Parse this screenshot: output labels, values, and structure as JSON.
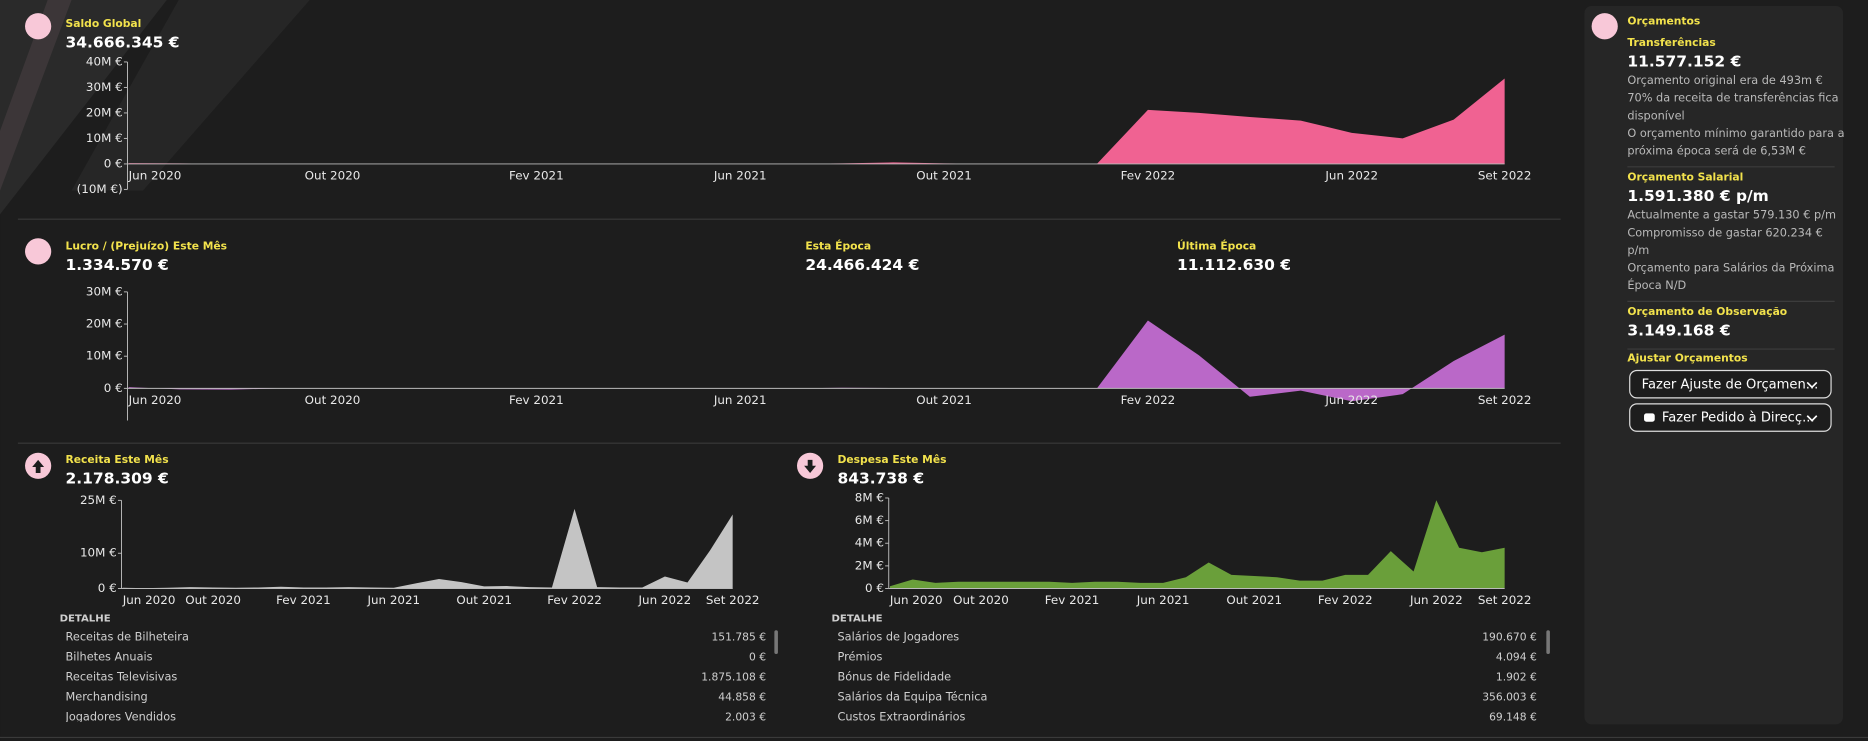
{
  "chart_data": [
    {
      "type": "area",
      "title": "Saldo Global",
      "subtitle": "34.666.345 €",
      "color": "#f06292",
      "categories": [
        "Jun 2020",
        null,
        null,
        null,
        "Out 2020",
        null,
        null,
        null,
        "Fev 2021",
        null,
        null,
        null,
        "Jun 2021",
        null,
        null,
        null,
        "Out 2021",
        null,
        null,
        null,
        "Fev 2022",
        null,
        null,
        null,
        "Jun 2022",
        null,
        null,
        "Set 2022"
      ],
      "values": [
        0.3,
        0.2,
        0,
        0,
        0,
        0,
        0,
        0,
        0,
        0,
        0,
        0,
        0,
        0,
        0.2,
        0.6,
        0.2,
        0,
        0,
        0,
        21.2,
        20,
        18.4,
        17,
        12.2,
        10,
        17.4,
        33.5
      ],
      "ylim": [
        -10,
        40
      ],
      "yticks": [
        {
          "value": -10,
          "label": "(10M €)"
        },
        {
          "value": 0,
          "label": "0 €"
        },
        {
          "value": 10,
          "label": "10M €"
        },
        {
          "value": 20,
          "label": "20M €"
        },
        {
          "value": 30,
          "label": "30M €"
        },
        {
          "value": 40,
          "label": "40M €"
        }
      ]
    },
    {
      "type": "area",
      "title": "Lucro / (Prejuízo) Este Mês",
      "subtitle": "1.334.570 €",
      "color": "#ba68c8",
      "annotations": [
        {
          "label": "Esta Época",
          "value": "24.466.424 €"
        },
        {
          "label": "Última Época",
          "value": "11.112.630 €"
        }
      ],
      "categories": [
        "Jun 2020",
        null,
        null,
        null,
        "Out 2020",
        null,
        null,
        null,
        "Fev 2021",
        null,
        null,
        null,
        "Jun 2021",
        null,
        null,
        null,
        "Out 2021",
        null,
        null,
        null,
        "Fev 2022",
        null,
        null,
        null,
        "Jun 2022",
        null,
        null,
        "Set 2022"
      ],
      "values": [
        0.4,
        -0.3,
        -0.4,
        0,
        0,
        0,
        0,
        0,
        0,
        0,
        0,
        0,
        0,
        0,
        0.2,
        0.1,
        0,
        0,
        0,
        0,
        21.1,
        10.3,
        -2.6,
        -0.7,
        -4,
        -1.8,
        8.5,
        16.7
      ],
      "ylim": [
        -10,
        30
      ],
      "yticks": [
        {
          "value": 0,
          "label": "0 €"
        },
        {
          "value": 10,
          "label": "10M €"
        },
        {
          "value": 20,
          "label": "20M €"
        },
        {
          "value": 30,
          "label": "30M €"
        }
      ]
    },
    {
      "type": "area",
      "title": "Receita Este Mês",
      "subtitle": "2.178.309 €",
      "color": "#c4c4c4",
      "categories": [
        "Jun 2020",
        null,
        null,
        null,
        "Out 2020",
        null,
        null,
        null,
        "Fev 2021",
        null,
        null,
        null,
        "Jun 2021",
        null,
        null,
        null,
        "Out 2021",
        null,
        null,
        null,
        "Fev 2022",
        null,
        null,
        null,
        "Jun 2022",
        null,
        null,
        "Set 2022"
      ],
      "values": [
        0.2,
        0.1,
        0.2,
        0.4,
        0.3,
        0.2,
        0.3,
        0.5,
        0.3,
        0.3,
        0.4,
        0.3,
        0.2,
        1.5,
        2.7,
        1.8,
        0.6,
        0.7,
        0.4,
        0.3,
        22.6,
        0.4,
        0.3,
        0.3,
        3.4,
        1.7,
        10.8,
        21
      ],
      "ylim": [
        0,
        25
      ],
      "yticks": [
        {
          "value": 0,
          "label": "0 €"
        },
        {
          "value": 10,
          "label": "10M €"
        },
        {
          "value": 25,
          "label": "25M €"
        }
      ],
      "detail": {
        "title": "DETALHE",
        "rows": [
          [
            "Receitas de Bilheteira",
            "151.785 €"
          ],
          [
            "Bilhetes Anuais",
            "0 €"
          ],
          [
            "Receitas Televisivas",
            "1.875.108 €"
          ],
          [
            "Merchandising",
            "44.858 €"
          ],
          [
            "Jogadores Vendidos",
            "2.003 €"
          ]
        ]
      }
    },
    {
      "type": "area",
      "title": "Despesa Este Mês",
      "subtitle": "843.738 €",
      "color": "#6a9f3a",
      "categories": [
        "Jun 2020",
        null,
        null,
        null,
        "Out 2020",
        null,
        null,
        null,
        "Fev 2021",
        null,
        null,
        null,
        "Jun 2021",
        null,
        null,
        null,
        "Out 2021",
        null,
        null,
        null,
        "Fev 2022",
        null,
        null,
        null,
        "Jun 2022",
        null,
        null,
        "Set 2022"
      ],
      "values": [
        0.2,
        0.8,
        0.5,
        0.6,
        0.6,
        0.6,
        0.6,
        0.6,
        0.5,
        0.6,
        0.6,
        0.5,
        0.5,
        1.0,
        2.3,
        1.2,
        1.1,
        1.0,
        0.7,
        0.7,
        1.2,
        1.2,
        3.3,
        1.5,
        7.8,
        3.6,
        3.2,
        3.6
      ],
      "ylim": [
        0,
        8
      ],
      "yticks": [
        {
          "value": 0,
          "label": "0 €"
        },
        {
          "value": 2,
          "label": "2M €"
        },
        {
          "value": 4,
          "label": "4M €"
        },
        {
          "value": 6,
          "label": "6M €"
        },
        {
          "value": 8,
          "label": "8M €"
        }
      ],
      "detail": {
        "title": "DETALHE",
        "rows": [
          [
            "Salários de Jogadores",
            "190.670 €"
          ],
          [
            "Prémios",
            "4.094 €"
          ],
          [
            "Bónus de Fidelidade",
            "1.902 €"
          ],
          [
            "Salários da Equipa Técnica",
            "356.003 €"
          ],
          [
            "Custos Extraordinários",
            "69.148 €"
          ]
        ]
      }
    }
  ],
  "sidebar": {
    "title": "Orçamentos",
    "sections": [
      {
        "title": "Transferências",
        "value": "11.577.152 €",
        "notes": [
          "Orçamento original era de 493m €",
          "70% da receita de transferências fica",
          "disponível",
          "O orçamento mínimo garantido para a",
          "próxima época será de 6,53M €"
        ]
      },
      {
        "title": "Orçamento Salarial",
        "value": "1.591.380 € p/m",
        "notes": [
          "Actualmente a gastar 579.130 € p/m",
          "Compromisso de gastar 620.234 €",
          "p/m",
          "Orçamento para Salários da Próxima",
          "Época N/D"
        ]
      },
      {
        "title": "Orçamento de Observação",
        "value": "3.149.168 €",
        "notes": []
      }
    ],
    "adjust": {
      "title": "Ajustar Orçamentos",
      "buttons": [
        "Fazer Ajuste de Orçamen...",
        "Fazer Pedido à Direcç..."
      ]
    }
  }
}
